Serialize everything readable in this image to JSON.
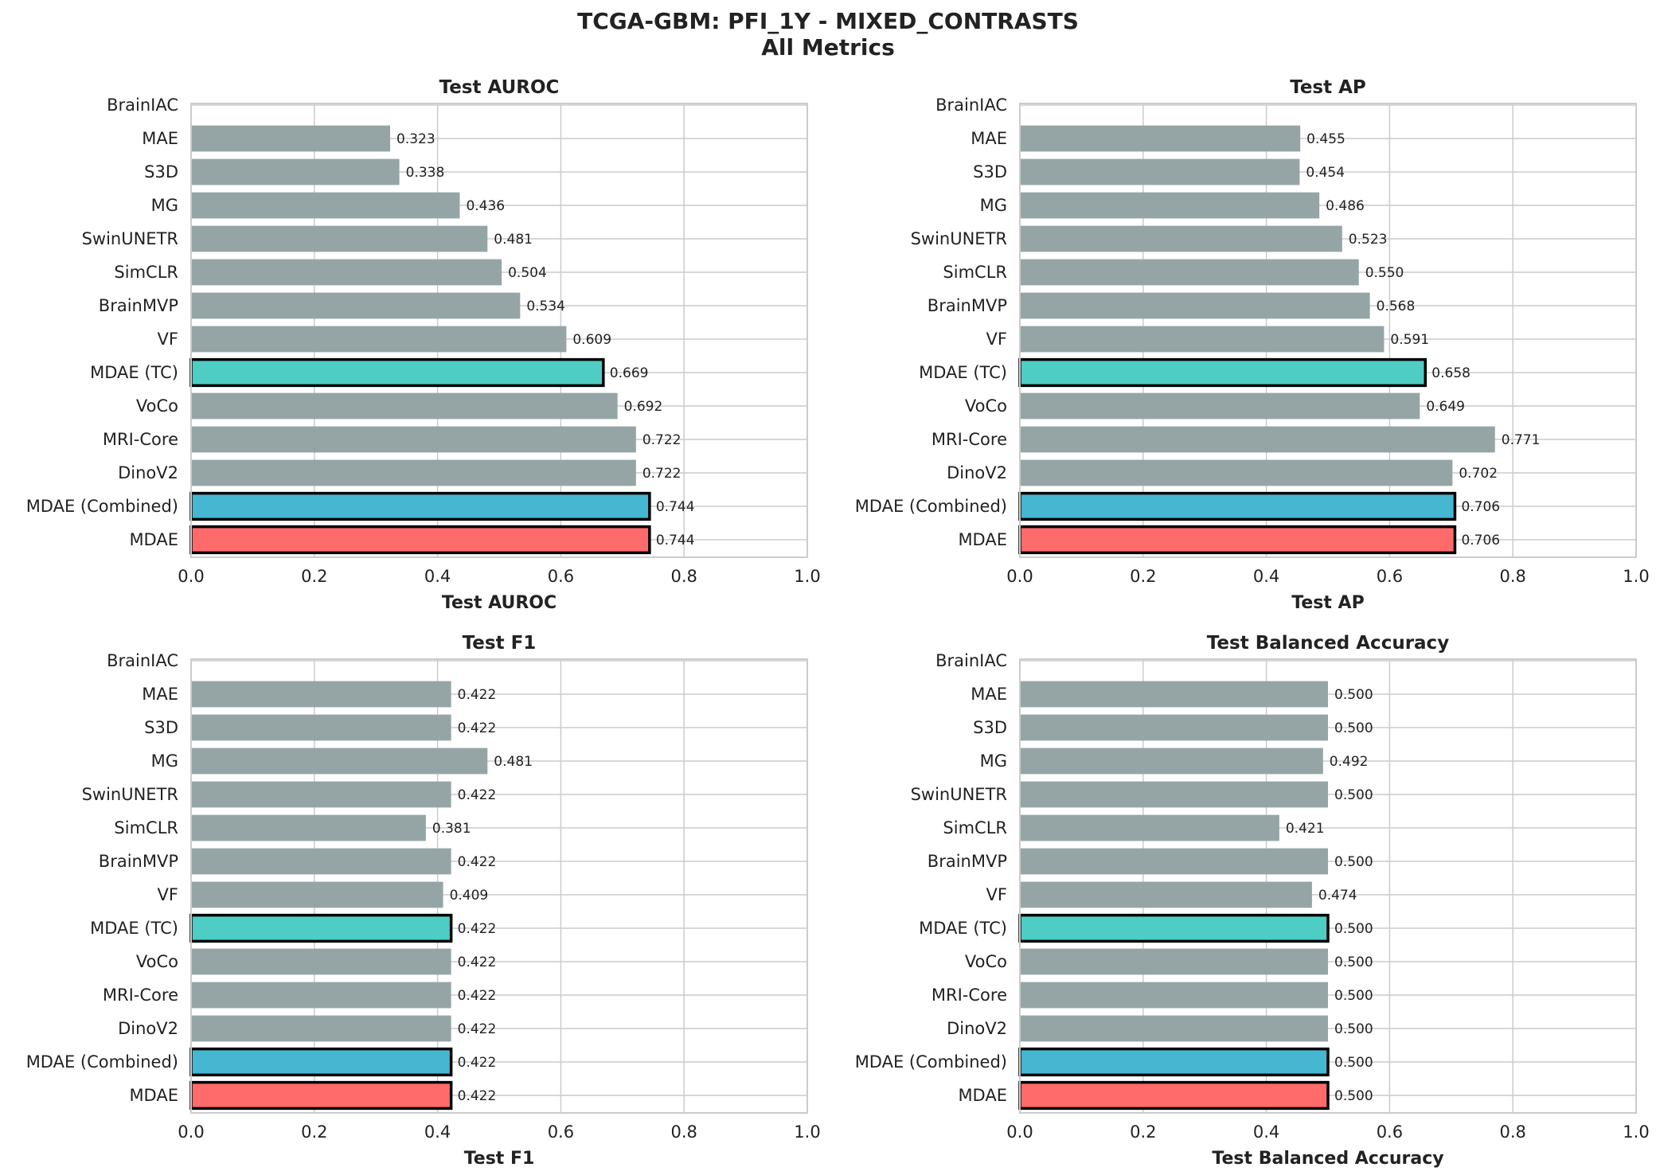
{
  "title_line1": "TCGA-GBM: PFI_1Y - MIXED_CONTRASTS",
  "title_line2": "All Metrics",
  "colors": {
    "default_bar": "#95a5a6",
    "mdae_tc": "#4ecdc4",
    "mdae_combined": "#45b7d1",
    "mdae": "#ff6b6b",
    "grid": "#cccccc",
    "highlight_edge": "#000000"
  },
  "highlights": {
    "MDAE (TC)": "mdae_tc",
    "MDAE (Combined)": "mdae_combined",
    "MDAE": "mdae"
  },
  "chart_data": [
    {
      "type": "bar",
      "orientation": "horizontal",
      "title": "Test AUROC",
      "xlabel": "Test AUROC",
      "xlim": [
        0,
        1
      ],
      "xticks": [
        "0.0",
        "0.2",
        "0.4",
        "0.6",
        "0.8",
        "1.0"
      ],
      "grid": true,
      "categories": [
        "BrainIAC",
        "MAE",
        "S3D",
        "MG",
        "SwinUNETR",
        "SimCLR",
        "BrainMVP",
        "VF",
        "MDAE (TC)",
        "VoCo",
        "MRI-Core",
        "DinoV2",
        "MDAE (Combined)",
        "MDAE"
      ],
      "values": [
        null,
        0.323,
        0.338,
        0.436,
        0.481,
        0.504,
        0.534,
        0.609,
        0.669,
        0.692,
        0.722,
        0.722,
        0.744,
        0.744
      ],
      "labels": [
        "",
        "0.323",
        "0.338",
        "0.436",
        "0.481",
        "0.504",
        "0.534",
        "0.609",
        "0.669",
        "0.692",
        "0.722",
        "0.722",
        "0.744",
        "0.744"
      ]
    },
    {
      "type": "bar",
      "orientation": "horizontal",
      "title": "Test AP",
      "xlabel": "Test AP",
      "xlim": [
        0,
        1
      ],
      "xticks": [
        "0.0",
        "0.2",
        "0.4",
        "0.6",
        "0.8",
        "1.0"
      ],
      "grid": true,
      "categories": [
        "BrainIAC",
        "MAE",
        "S3D",
        "MG",
        "SwinUNETR",
        "SimCLR",
        "BrainMVP",
        "VF",
        "MDAE (TC)",
        "VoCo",
        "MRI-Core",
        "DinoV2",
        "MDAE (Combined)",
        "MDAE"
      ],
      "values": [
        null,
        0.455,
        0.454,
        0.486,
        0.523,
        0.55,
        0.568,
        0.591,
        0.658,
        0.649,
        0.771,
        0.702,
        0.706,
        0.706
      ],
      "labels": [
        "",
        "0.455",
        "0.454",
        "0.486",
        "0.523",
        "0.550",
        "0.568",
        "0.591",
        "0.658",
        "0.649",
        "0.771",
        "0.702",
        "0.706",
        "0.706"
      ]
    },
    {
      "type": "bar",
      "orientation": "horizontal",
      "title": "Test F1",
      "xlabel": "Test F1",
      "xlim": [
        0,
        1
      ],
      "xticks": [
        "0.0",
        "0.2",
        "0.4",
        "0.6",
        "0.8",
        "1.0"
      ],
      "grid": true,
      "categories": [
        "BrainIAC",
        "MAE",
        "S3D",
        "MG",
        "SwinUNETR",
        "SimCLR",
        "BrainMVP",
        "VF",
        "MDAE (TC)",
        "VoCo",
        "MRI-Core",
        "DinoV2",
        "MDAE (Combined)",
        "MDAE"
      ],
      "values": [
        null,
        0.422,
        0.422,
        0.481,
        0.422,
        0.381,
        0.422,
        0.409,
        0.422,
        0.422,
        0.422,
        0.422,
        0.422,
        0.422
      ],
      "labels": [
        "",
        "0.422",
        "0.422",
        "0.481",
        "0.422",
        "0.381",
        "0.422",
        "0.409",
        "0.422",
        "0.422",
        "0.422",
        "0.422",
        "0.422",
        "0.422"
      ]
    },
    {
      "type": "bar",
      "orientation": "horizontal",
      "title": "Test Balanced Accuracy",
      "xlabel": "Test Balanced Accuracy",
      "xlim": [
        0,
        1
      ],
      "xticks": [
        "0.0",
        "0.2",
        "0.4",
        "0.6",
        "0.8",
        "1.0"
      ],
      "grid": true,
      "categories": [
        "BrainIAC",
        "MAE",
        "S3D",
        "MG",
        "SwinUNETR",
        "SimCLR",
        "BrainMVP",
        "VF",
        "MDAE (TC)",
        "VoCo",
        "MRI-Core",
        "DinoV2",
        "MDAE (Combined)",
        "MDAE"
      ],
      "values": [
        null,
        0.5,
        0.5,
        0.492,
        0.5,
        0.421,
        0.5,
        0.474,
        0.5,
        0.5,
        0.5,
        0.5,
        0.5,
        0.5
      ],
      "labels": [
        "",
        "0.500",
        "0.500",
        "0.492",
        "0.500",
        "0.421",
        "0.500",
        "0.474",
        "0.500",
        "0.500",
        "0.500",
        "0.500",
        "0.500",
        "0.500"
      ]
    }
  ]
}
